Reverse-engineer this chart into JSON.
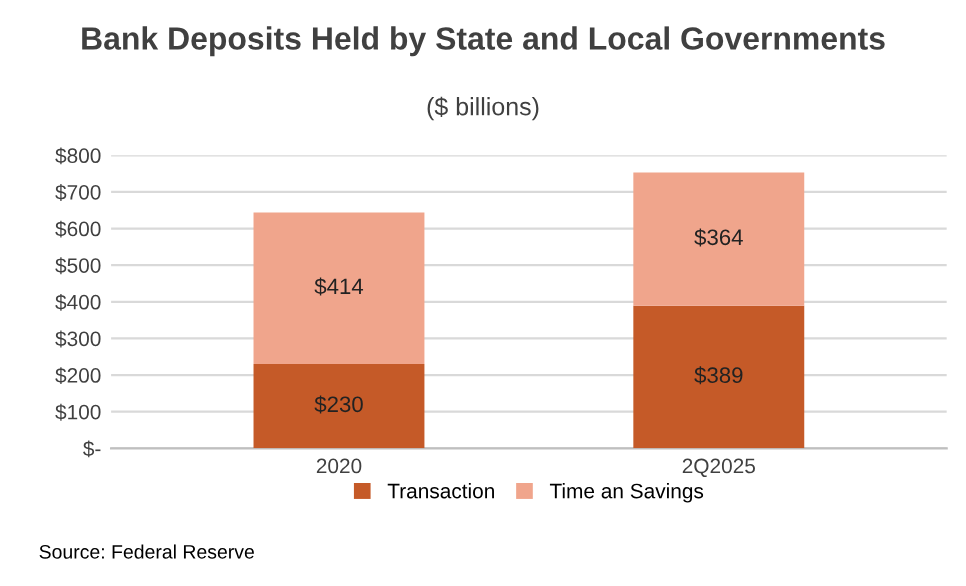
{
  "chart_data": {
    "type": "bar",
    "title": "Bank Deposits Held by State and Local Governments",
    "subtitle": "($ billions)",
    "categories": [
      "2020",
      "2Q2025"
    ],
    "stacked": true,
    "series": [
      {
        "name": "Transaction",
        "color": "#c55a28",
        "values": [
          230,
          389
        ],
        "value_labels": [
          "$230",
          "$389"
        ]
      },
      {
        "name": "Time an Savings",
        "color": "#f0a58c",
        "values": [
          414,
          364
        ],
        "value_labels": [
          "$414",
          "$364"
        ]
      }
    ],
    "ylim": [
      0,
      800
    ],
    "yticks": [
      {
        "value": 0,
        "label": "$-"
      },
      {
        "value": 100,
        "label": "$100"
      },
      {
        "value": 200,
        "label": "$200"
      },
      {
        "value": 300,
        "label": "$300"
      },
      {
        "value": 400,
        "label": "$400"
      },
      {
        "value": 500,
        "label": "$500"
      },
      {
        "value": 600,
        "label": "$600"
      },
      {
        "value": 700,
        "label": "$700"
      },
      {
        "value": 800,
        "label": "$800"
      }
    ],
    "grid": "y",
    "legend": "bottom",
    "annotations": [
      "Source: Federal Reserve"
    ]
  }
}
